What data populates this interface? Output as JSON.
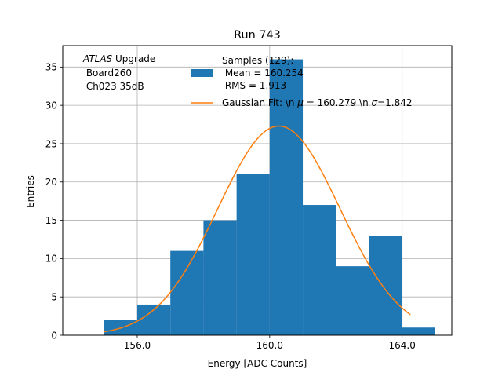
{
  "chart_data": {
    "type": "bar",
    "title": "Run 743",
    "xlabel": "Energy [ADC Counts]",
    "ylabel": "Entries",
    "xlim": [
      153.75,
      165.5
    ],
    "ylim": [
      0,
      37.8
    ],
    "grid": true,
    "x_ticks": [
      156,
      160,
      164
    ],
    "x_tick_labels": [
      "156.0",
      "160.0",
      "164.0"
    ],
    "y_ticks": [
      0,
      5,
      10,
      15,
      20,
      25,
      30,
      35
    ],
    "y_tick_labels": [
      "0",
      "5",
      "10",
      "15",
      "20",
      "25",
      "30",
      "35"
    ],
    "bin_edges": [
      155,
      156,
      157,
      158,
      159,
      160,
      161,
      162,
      163,
      164,
      165
    ],
    "values": [
      2,
      4,
      11,
      15,
      21,
      36,
      17,
      9,
      13,
      1
    ],
    "fit": {
      "type": "gaussian",
      "mu": 160.279,
      "sigma": 1.842,
      "amplitude": 27.3,
      "x_range": [
        155,
        164.25
      ]
    },
    "colors": {
      "bars": "#1f77b4",
      "fit": "#ff7f0e",
      "grid": "#b0b0b0"
    },
    "annotation": {
      "italic": "ATLAS",
      "rest": " Upgrade",
      "lines": [
        " Board260",
        " Ch023 35dB"
      ]
    },
    "legend": {
      "placement": "top-right",
      "histogram": [
        "Samples (129):",
        " Mean = 160.254",
        " RMS = 1.913"
      ],
      "fit_label": {
        "prefix": "Gaussian Fit: \\n ",
        "mu_symbol": "μ",
        "mid": " = 160.279 \\n ",
        "sigma_symbol": "σ",
        "suffix": "=1.842"
      }
    }
  }
}
